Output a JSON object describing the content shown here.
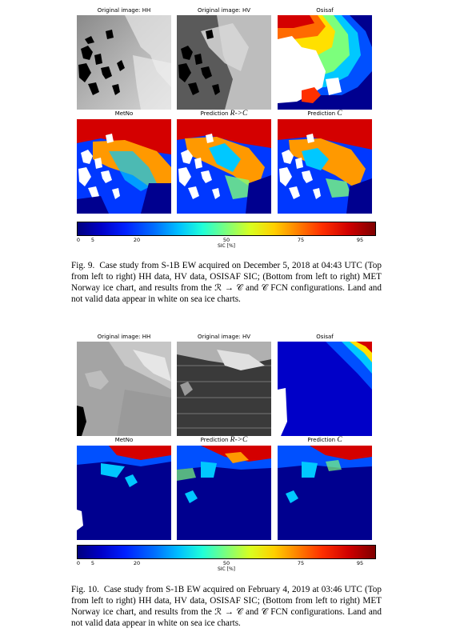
{
  "figures": [
    {
      "panels": [
        {
          "title": "Original image: HH",
          "kind": "sar_hh"
        },
        {
          "title": "Original image: HV",
          "kind": "sar_hv"
        },
        {
          "title": "Osisaf",
          "kind": "osisaf"
        },
        {
          "title": "MetNo",
          "kind": "metno"
        },
        {
          "title_text": "Prediction ",
          "title_math": "R->C",
          "kind": "pred_rc"
        },
        {
          "title_text": "Prediction ",
          "title_math": "C",
          "kind": "pred_c"
        }
      ],
      "colorbar": {
        "ticks": [
          "0",
          "5",
          "20",
          "50",
          "75",
          "95"
        ],
        "label": "SIC [%]"
      },
      "caption": {
        "label": "Fig. 9.",
        "text": "Case study from S-1B EW acquired on December 5, 2018 at 04:43 UTC (Top from left to right) HH data, HV data, OSISAF SIC; (Bottom from left to right) MET Norway ice chart, and results from the ℛ → 𝒞 and 𝒞 FCN configurations. Land and not valid data appear in white on sea ice charts."
      }
    },
    {
      "panels": [
        {
          "title": "Original image: HH",
          "kind": "sar_hh"
        },
        {
          "title": "Original image: HV",
          "kind": "sar_hv"
        },
        {
          "title": "Osisaf",
          "kind": "osisaf"
        },
        {
          "title": "MetNo",
          "kind": "metno"
        },
        {
          "title_text": "Prediction ",
          "title_math": "R->C",
          "kind": "pred_rc"
        },
        {
          "title_text": "Prediction ",
          "title_math": "C",
          "kind": "pred_c"
        }
      ],
      "colorbar": {
        "ticks": [
          "0",
          "5",
          "20",
          "50",
          "75",
          "95"
        ],
        "label": "SIC [%]"
      },
      "caption": {
        "label": "Fig. 10.",
        "text": "Case study from S-1B EW acquired on February 4, 2019 at 03:46 UTC (Top from left to right) HH data, HV data, OSISAF SIC; (Bottom from left to right) MET Norway ice chart, and results from the ℛ → 𝒞 and 𝒞 FCN configurations. Land and not valid data appear in white on sea ice charts."
      }
    }
  ],
  "colors": {
    "deep_blue": "#00008f",
    "blue": "#0038ff",
    "cyan": "#00c8ff",
    "green": "#7cff7c",
    "yellow": "#ffe000",
    "orange": "#ff9900",
    "red": "#d40000",
    "land": "#ffffff"
  }
}
